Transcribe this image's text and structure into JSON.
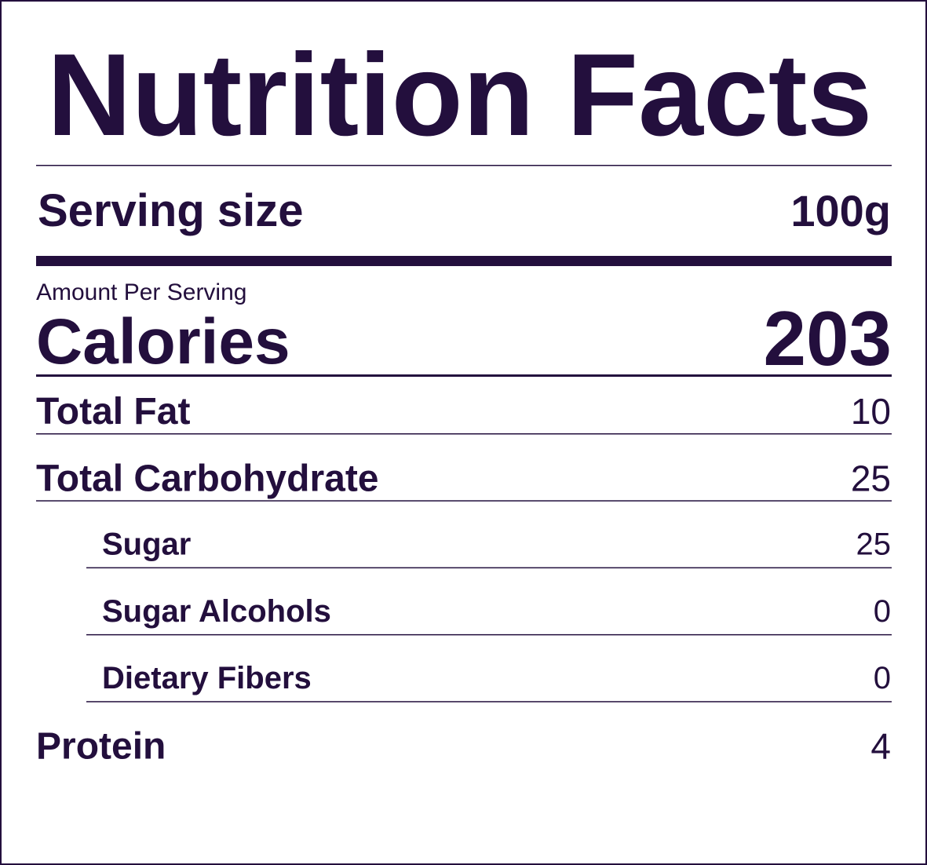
{
  "title": "Nutrition Facts",
  "serving": {
    "label": "Serving size",
    "value": "100g"
  },
  "amount_per_serving": "Amount Per Serving",
  "calories": {
    "label": "Calories",
    "value": "203"
  },
  "rows": [
    {
      "label": "Total Fat",
      "value": "10"
    },
    {
      "label": "Total Carbohydrate",
      "value": "25",
      "sub_rows": [
        {
          "label": "Sugar",
          "value": "25"
        },
        {
          "label": "Sugar Alcohols",
          "value": "0"
        },
        {
          "label": "Dietary Fibers",
          "value": "0"
        }
      ]
    },
    {
      "label": "Protein",
      "value": "4"
    }
  ]
}
